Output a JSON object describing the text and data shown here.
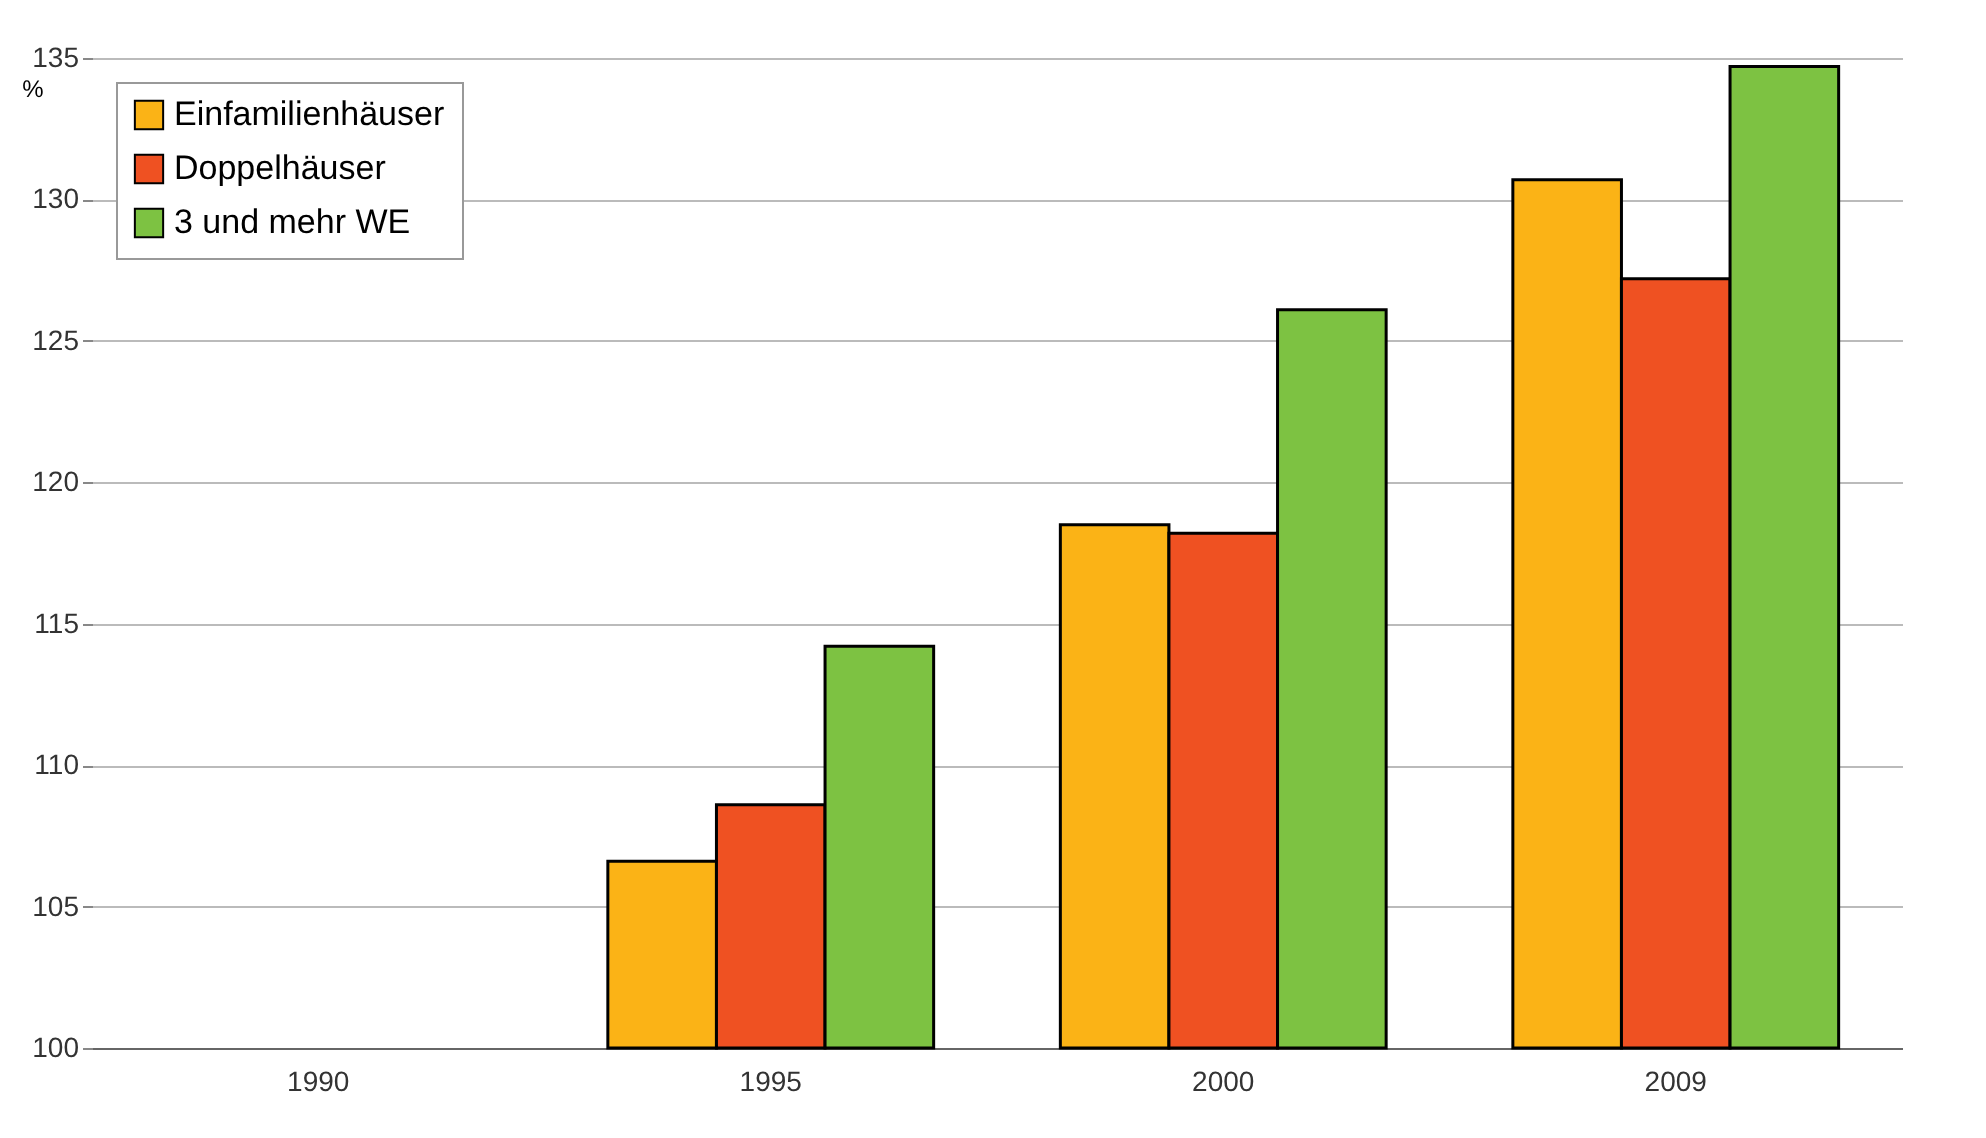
{
  "chart_data": {
    "type": "bar",
    "ylabel": "%",
    "categories": [
      "1990",
      "1995",
      "2000",
      "2009"
    ],
    "series": [
      {
        "name": "Einfamilienhäuser",
        "color": "#fbb316",
        "values": [
          100,
          106.6,
          118.5,
          130.7
        ]
      },
      {
        "name": "Doppelhäuser",
        "color": "#ef5122",
        "values": [
          100,
          108.6,
          118.2,
          127.2
        ]
      },
      {
        "name": "3 und mehr WE",
        "color": "#7dc242",
        "values": [
          100,
          114.2,
          126.1,
          134.7
        ]
      }
    ],
    "ylim": [
      100,
      135
    ],
    "yticks": [
      100,
      105,
      110,
      115,
      120,
      125,
      130,
      135
    ],
    "grid": "y",
    "legend": "top left"
  }
}
